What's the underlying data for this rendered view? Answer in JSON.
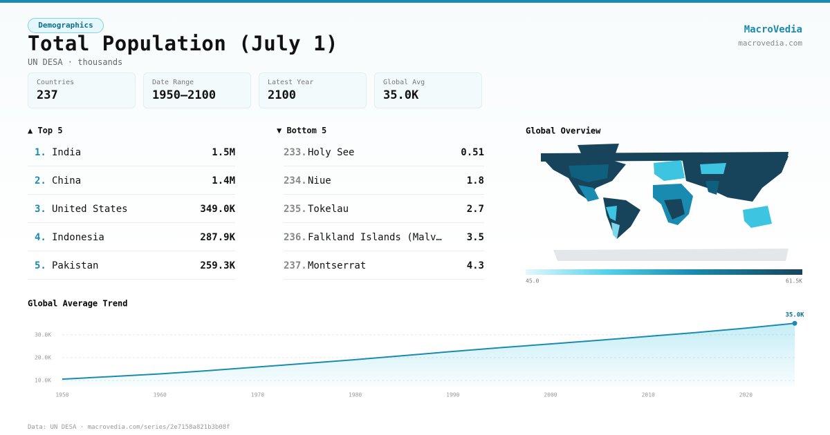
{
  "header": {
    "badge": "Demographics",
    "title": "Total Population (July 1)",
    "subtitle": "UN DESA · thousands",
    "brand": "MacroVedia",
    "brand_url": "macrovedia.com"
  },
  "stats": [
    {
      "label": "Countries",
      "value": "237"
    },
    {
      "label": "Date Range",
      "value": "1950–2100"
    },
    {
      "label": "Latest Year",
      "value": "2100"
    },
    {
      "label": "Global Avg",
      "value": "35.0K"
    }
  ],
  "top": {
    "title": "▲ Top 5",
    "items": [
      {
        "rank": "1.",
        "name": "India",
        "value": "1.5M"
      },
      {
        "rank": "2.",
        "name": "China",
        "value": "1.4M"
      },
      {
        "rank": "3.",
        "name": "United States",
        "value": "349.0K"
      },
      {
        "rank": "4.",
        "name": "Indonesia",
        "value": "287.9K"
      },
      {
        "rank": "5.",
        "name": "Pakistan",
        "value": "259.3K"
      }
    ]
  },
  "bottom": {
    "title": "▼ Bottom 5",
    "items": [
      {
        "rank": "233.",
        "name": "Holy See",
        "value": "0.51"
      },
      {
        "rank": "234.",
        "name": "Niue",
        "value": "1.8"
      },
      {
        "rank": "235.",
        "name": "Tokelau",
        "value": "2.7"
      },
      {
        "rank": "236.",
        "name": "Falkland Islands (Malv…",
        "value": "3.5"
      },
      {
        "rank": "237.",
        "name": "Montserrat",
        "value": "4.3"
      }
    ]
  },
  "map": {
    "title": "Global Overview",
    "legend_min": "45.0",
    "legend_max": "61.5K"
  },
  "chart_data": {
    "type": "line",
    "title": "Global Average Trend",
    "color": "#1a8bb0",
    "x": [
      1950,
      1955,
      1960,
      1965,
      1970,
      1975,
      1980,
      1985,
      1990,
      1995,
      2000,
      2005,
      2010,
      2015,
      2020,
      2025
    ],
    "values": [
      10600,
      11700,
      12900,
      14300,
      15900,
      17500,
      19100,
      20900,
      22700,
      24400,
      26000,
      27600,
      29300,
      31000,
      32900,
      35000
    ],
    "value_labels": [
      null,
      null,
      null,
      null,
      null,
      null,
      null,
      null,
      null,
      null,
      null,
      null,
      null,
      null,
      null,
      "35.0K"
    ],
    "xlim": [
      1950,
      2025
    ],
    "xticks": [
      1950,
      1960,
      1970,
      1980,
      1990,
      2000,
      2010,
      2020
    ],
    "ylim": [
      7300,
      39000
    ],
    "yticks": [
      {
        "value": 10000,
        "label": "10.0K"
      },
      {
        "value": 20000,
        "label": "20.0K"
      },
      {
        "value": 30000,
        "label": "30.0K"
      }
    ],
    "grid": true
  },
  "footer": "Data: UN DESA · macrovedia.com/series/2e7158a821b3b08f"
}
